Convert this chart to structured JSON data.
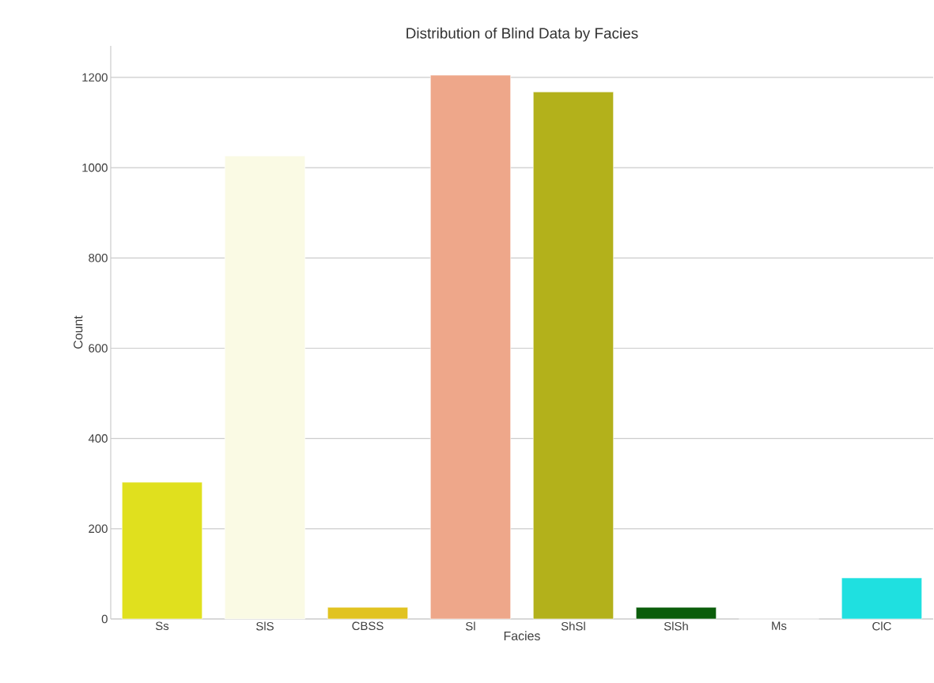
{
  "chart_data": {
    "type": "bar",
    "title": "Distribution of Blind Data by Facies",
    "xlabel": "Facies",
    "ylabel": "Count",
    "categories": [
      "Ss",
      "SlS",
      "CBSS",
      "Sl",
      "ShSl",
      "SlSh",
      "Ms",
      "ClC"
    ],
    "values": [
      303,
      1026,
      26,
      1205,
      1168,
      26,
      0,
      91
    ],
    "colors": [
      "#e0e01e",
      "#fafae4",
      "#e1c321",
      "#eea78a",
      "#b3b11b",
      "#0b5d0b",
      "#808080",
      "#1fe0e0"
    ],
    "ylim": [
      0,
      1270
    ],
    "yticks": [
      0,
      200,
      400,
      600,
      800,
      1000,
      1200
    ],
    "grid": "y"
  }
}
